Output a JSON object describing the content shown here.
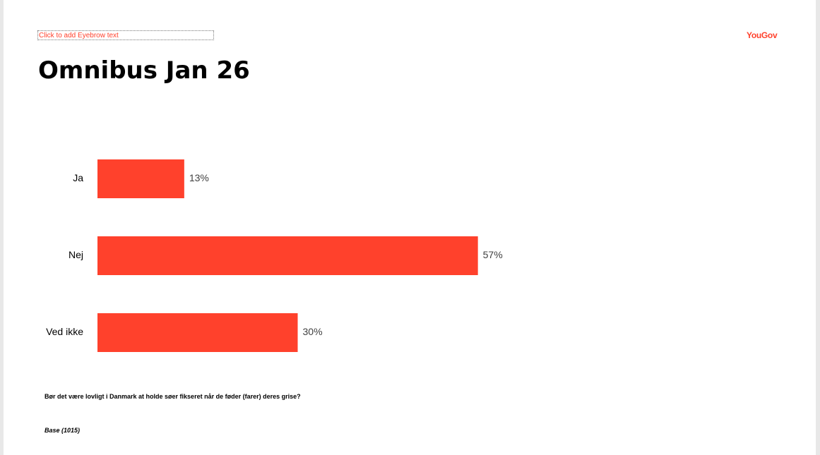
{
  "eyebrow": {
    "placeholder": "Click to add Eyebrow text"
  },
  "logo": {
    "text": "YouGov"
  },
  "title": "Omnibus Jan 26",
  "chart_data": {
    "type": "bar",
    "orientation": "horizontal",
    "categories": [
      "Ja",
      "Nej",
      "Ved ikke"
    ],
    "values": [
      13,
      57,
      30
    ],
    "value_labels": [
      "13%",
      "57%",
      "30%"
    ],
    "unit": "%",
    "xlim": [
      0,
      100
    ],
    "grid": false,
    "bar_color": "#ff412c"
  },
  "footer": {
    "question": "Bør det være lovligt i Danmark at holde søer fikseret når de føder (farer) deres grise?",
    "base": "Base (1015)"
  },
  "colors": {
    "accent": "#ff412c",
    "label_text": "#000000",
    "value_text": "#404040"
  }
}
